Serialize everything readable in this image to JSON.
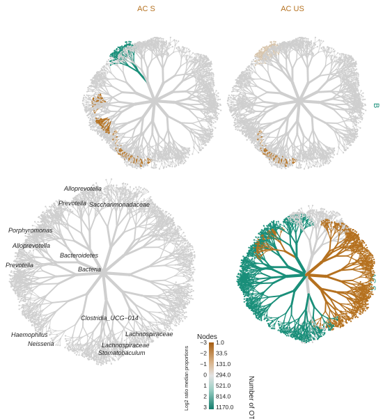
{
  "panels": {
    "top_left_title": "AC S",
    "top_right_title": "AC US",
    "right_label_top": "B",
    "right_label_bottom": "AC S"
  },
  "colors": {
    "brown": "#b5711f",
    "teal": "#1a8f7a",
    "grey": "#cfcfcf",
    "tan": "#d8c6ae"
  },
  "taxa_labels": [
    "Alloprevotella",
    "Prevotella",
    "Saccharimonadaceae",
    "Porphyromonas",
    "Alloprevotella",
    "Bacteroidetes",
    "Prevotella",
    "Bacteria",
    "Clostridia_UCG−014",
    "Lachnospiraceae",
    "Haemophilus",
    "Neisseria",
    "Lachnospiraceae",
    "Stomatobaculum"
  ],
  "legend": {
    "title": "Nodes",
    "color_axis_label": "Log2 ratio median proportions",
    "color_ticks": [
      "−3",
      "−2",
      "−1",
      "0",
      "1",
      "2",
      "3"
    ],
    "size_axis_label": "Number of OTUs",
    "size_ticks": [
      "1.0",
      "33.5",
      "131.0",
      "294.0",
      "521.0",
      "814.0",
      "1170.0"
    ]
  }
}
